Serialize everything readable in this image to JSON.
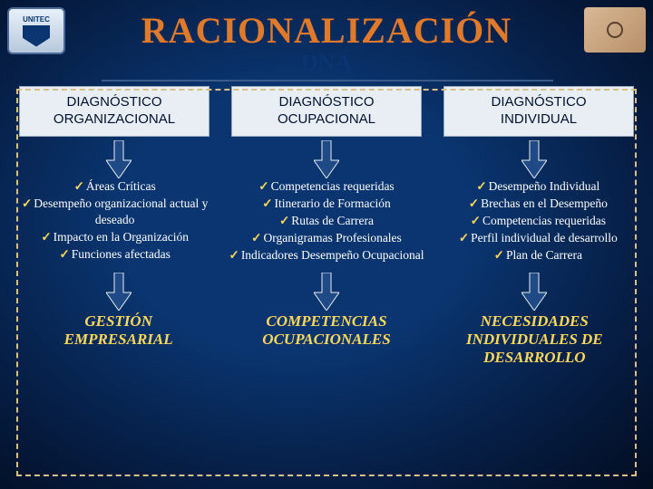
{
  "title": {
    "text": "RACIONALIZACIÓN",
    "color": "#e07a2a",
    "fontsize": 40
  },
  "subtitle": {
    "text": "DNA",
    "color": "#0a3570",
    "fontsize": 26
  },
  "headers": [
    {
      "line1": "DIAGNÓSTICO",
      "line2": "ORGANIZACIONAL"
    },
    {
      "line1": "DIAGNÓSTICO",
      "line2": "OCUPACIONAL"
    },
    {
      "line1": "DIAGNÓSTICO",
      "line2": "INDIVIDUAL"
    }
  ],
  "columns": [
    {
      "items": [
        "Áreas Críticas",
        "Desempeño organizacional actual y deseado",
        "Impacto en la Organización",
        "Funciones afectadas"
      ],
      "footer": [
        "GESTIÓN",
        "EMPRESARIAL"
      ]
    },
    {
      "items": [
        "Competencias requeridas",
        "Itinerario de Formación",
        "Rutas de Carrera",
        "Organigramas Profesionales",
        "Indicadores Desempeño Ocupacional"
      ],
      "footer": [
        "COMPETENCIAS",
        "OCUPACIONALES"
      ]
    },
    {
      "items": [
        "Desempeño Individual",
        "Brechas en el Desempeño",
        "Competencias requeridas",
        "Perfil individual de desarrollo",
        "Plan de Carrera"
      ],
      "footer": [
        "NECESIDADES",
        "INDIVIDUALES DE",
        "DESARROLLO"
      ]
    }
  ],
  "colors": {
    "check": "#ffd95a",
    "footer": "#ffd95a",
    "arrow_fill": "#1f4a85",
    "arrow_stroke": "#e8eef4",
    "header_bg": "#e8eef4",
    "body_text": "#ffffff",
    "dashed_border": "#d4c088"
  },
  "logo": {
    "text": "UNITEC"
  }
}
